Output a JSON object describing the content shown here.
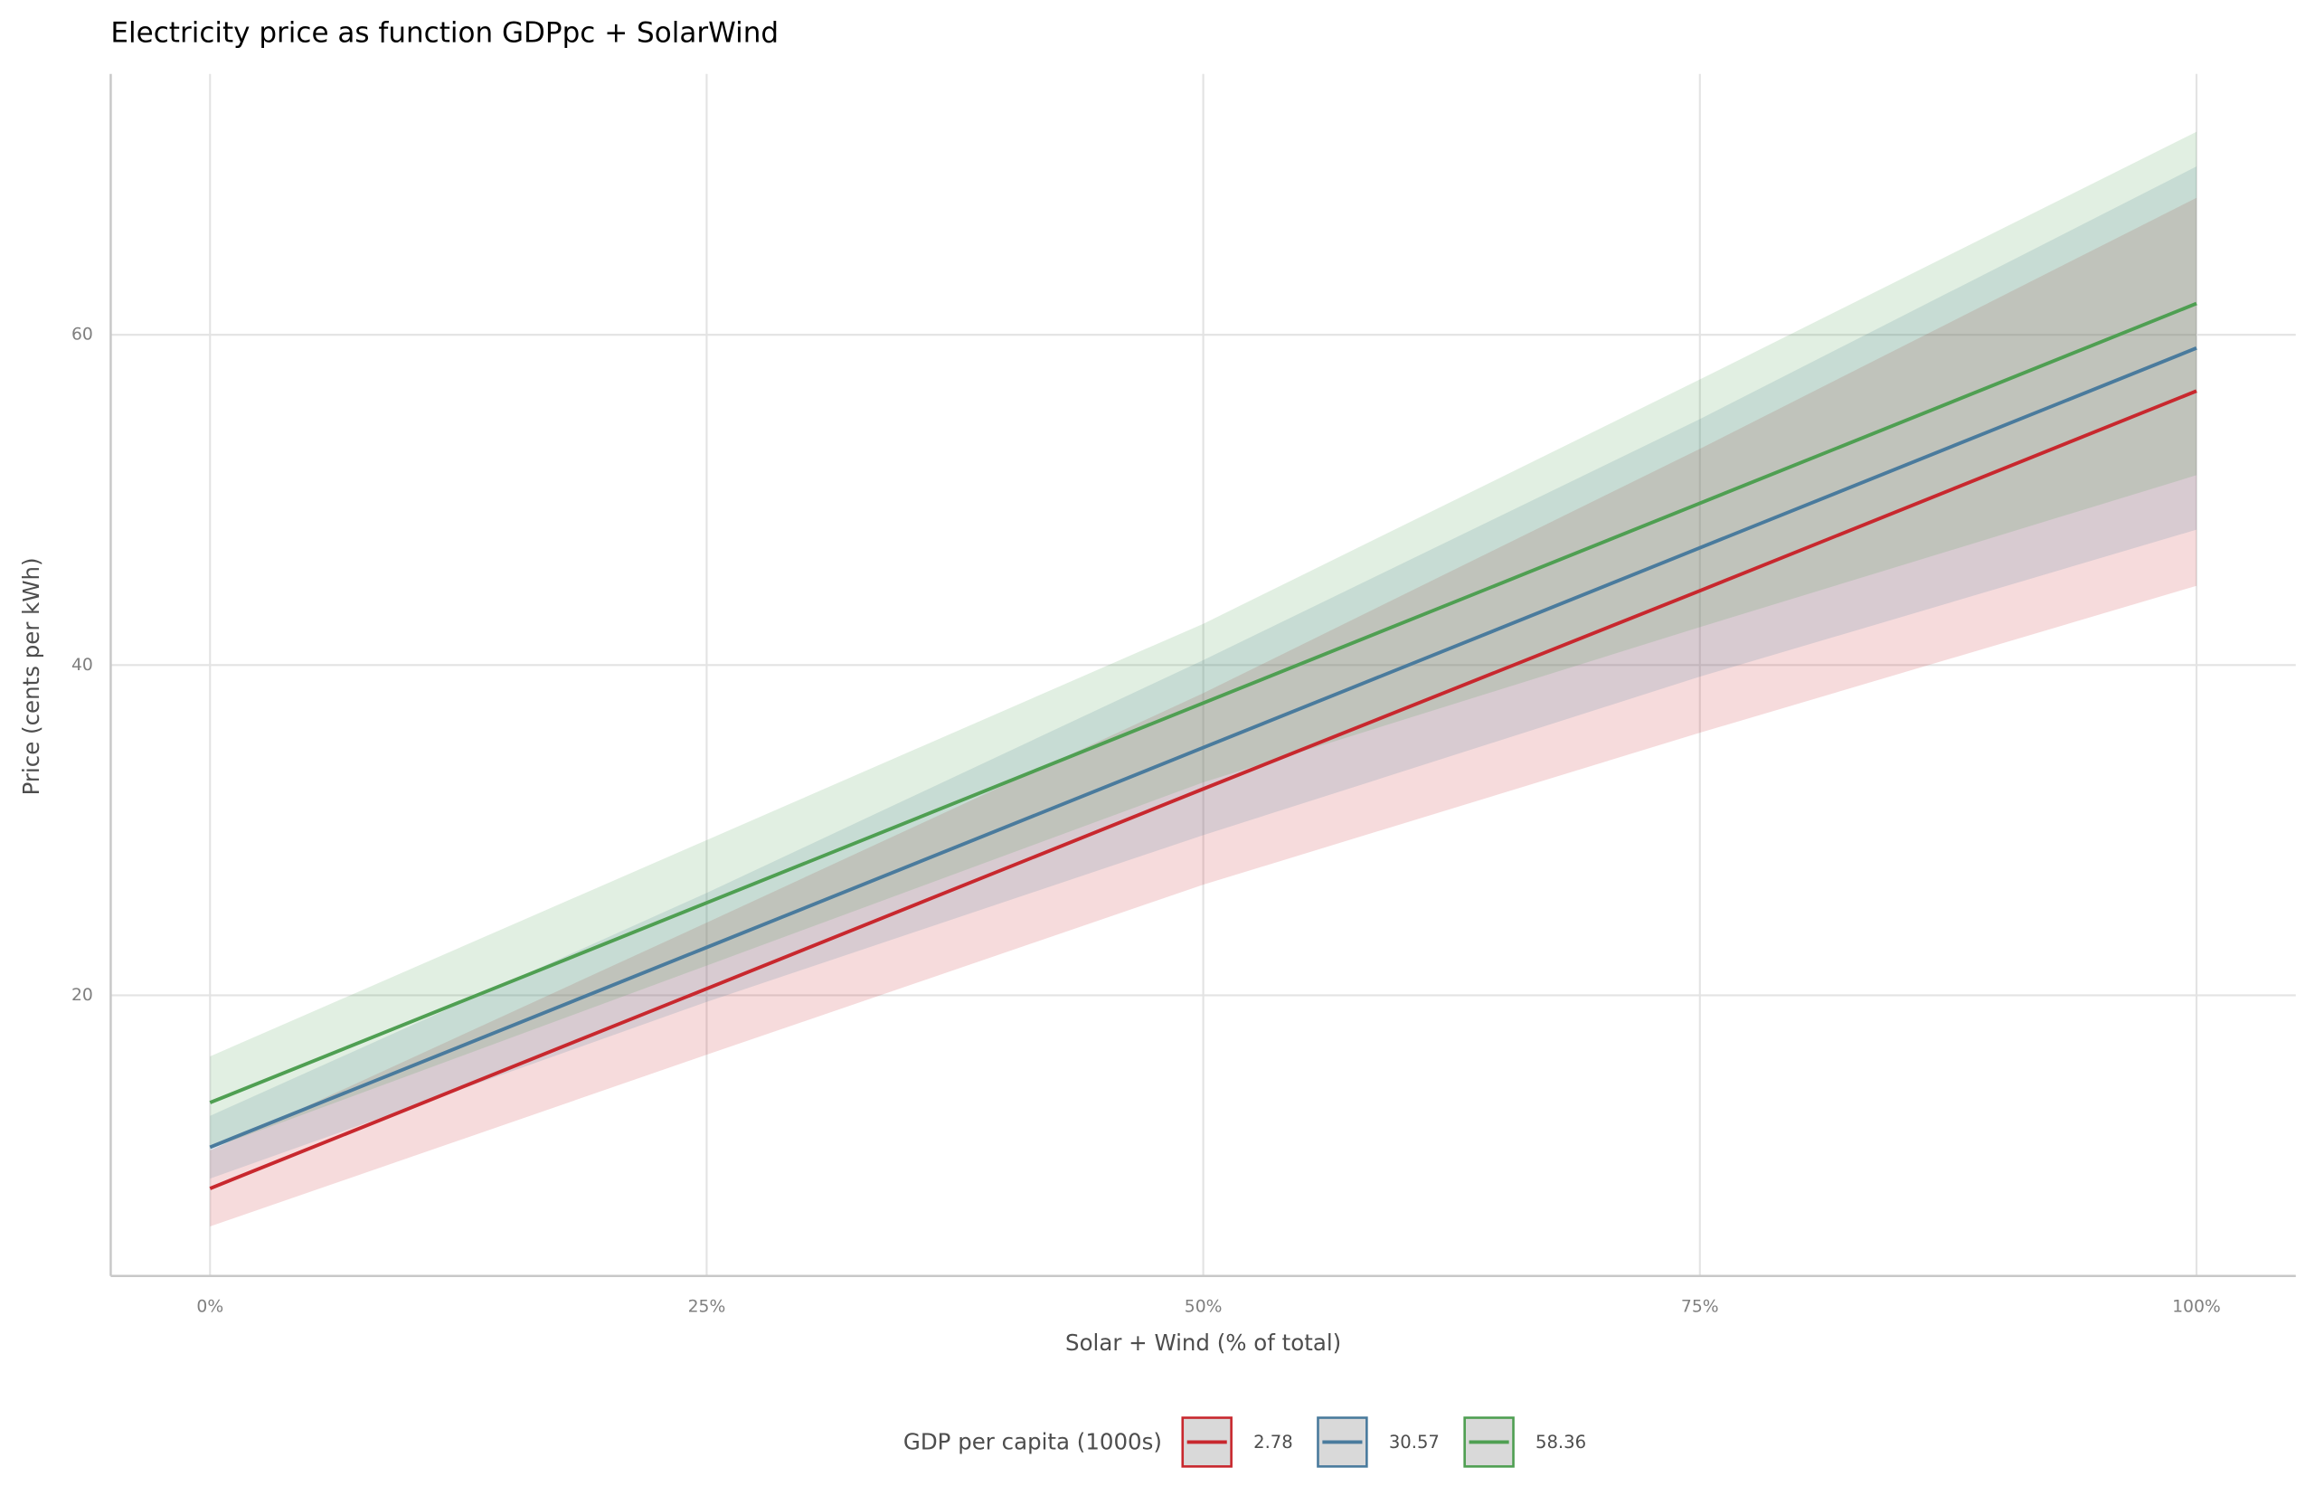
{
  "chart_data": {
    "type": "line",
    "title": "Electricity price as function GDPpc + SolarWind",
    "x_label": "Solar + Wind (% of total)",
    "y_label": "Price (cents per kWh)",
    "legend_title": "GDP per capita (1000s)",
    "legend_position": "bottom",
    "grid": true,
    "x": [
      0,
      0.25,
      0.5,
      0.75,
      1
    ],
    "xlim": [
      -0.05,
      1.05
    ],
    "xticks": [
      {
        "value": 0,
        "label": "0%"
      },
      {
        "value": 0.25,
        "label": "25%"
      },
      {
        "value": 0.5,
        "label": "50%"
      },
      {
        "value": 0.75,
        "label": "75%"
      },
      {
        "value": 1,
        "label": "100%"
      }
    ],
    "ylim": [
      3,
      75.8
    ],
    "yticks": [
      20,
      40,
      60
    ],
    "series": [
      {
        "name": "2.78",
        "color": "#c8282e",
        "values": [
          8.3,
          20.4,
          32.5,
          44.5,
          56.6
        ],
        "lower": [
          6.0,
          16.4,
          26.7,
          35.9,
          44.8
        ],
        "upper": [
          10.6,
          24.4,
          38.3,
          53.1,
          68.3
        ]
      },
      {
        "name": "30.57",
        "color": "#4a7b9d",
        "values": [
          10.8,
          22.9,
          35.0,
          47.1,
          59.2
        ],
        "lower": [
          8.9,
          19.6,
          29.7,
          39.3,
          48.2
        ],
        "upper": [
          12.7,
          26.2,
          40.3,
          54.9,
          70.2
        ]
      },
      {
        "name": "58.36",
        "color": "#4f9f52",
        "values": [
          13.5,
          25.6,
          37.7,
          49.8,
          61.9
        ],
        "lower": [
          10.7,
          21.8,
          32.9,
          42.3,
          51.5
        ],
        "upper": [
          16.3,
          29.4,
          42.5,
          57.3,
          72.3
        ]
      }
    ]
  }
}
